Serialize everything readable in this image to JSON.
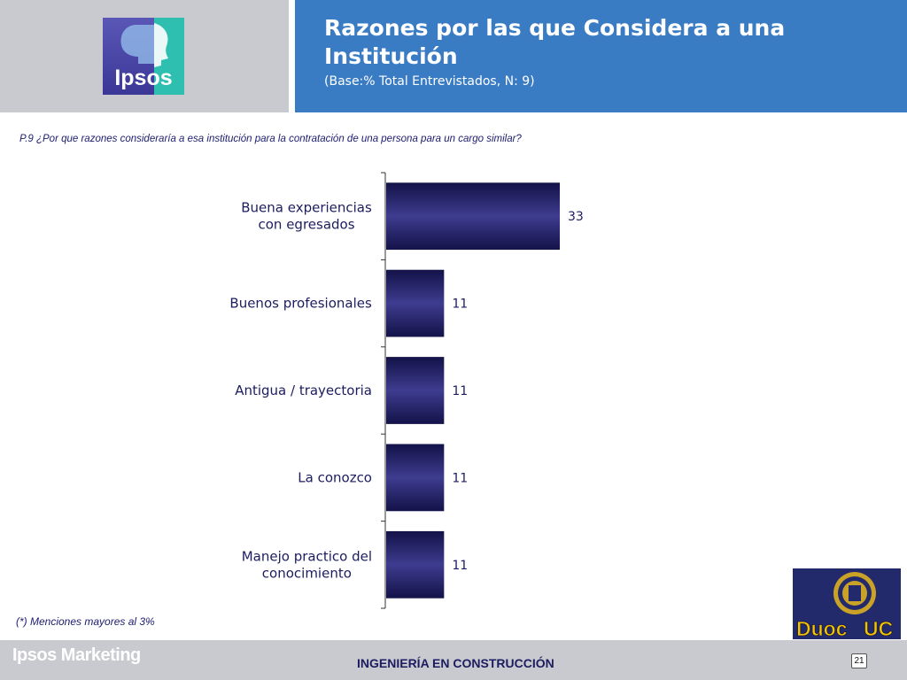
{
  "header": {
    "title": "Razones por las que Considera a una Institución",
    "subtitle": "(Base:% Total Entrevistados, N: 9)",
    "logo_text": "Ipsos"
  },
  "question": "P.9 ¿Por que razones consideraría a esa institución para la contratación de una persona para un cargo similar?",
  "chart_data": {
    "type": "bar",
    "orientation": "horizontal",
    "categories": [
      [
        "Buena experiencias",
        "con egresados"
      ],
      [
        "Buenos profesionales"
      ],
      [
        "Antigua / trayectoria"
      ],
      [
        "La conozco"
      ],
      [
        "Manejo practico del",
        "conocimiento"
      ]
    ],
    "values": [
      33,
      11,
      11,
      11,
      11
    ],
    "data_labels": [
      "33",
      "11",
      "11",
      "11",
      "11"
    ],
    "bar_color": "#25236b",
    "grid": false,
    "legend": "none"
  },
  "footnote": "(*) Menciones mayores al 3%",
  "footer": {
    "brand": "Ipsos Marketing",
    "title": "INGENIERÍA EN CONSTRUCCIÓN",
    "page_number": "21"
  },
  "duoc_logo": {
    "text_left": "Duoc",
    "text_right": "UC",
    "colors": {
      "background": "#232a6b",
      "text": "#f2c300"
    }
  }
}
